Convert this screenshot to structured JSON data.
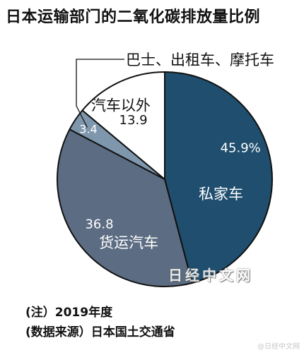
{
  "chart_data": {
    "type": "pie",
    "title": "日本运输部门的二氧化碳排放量比例",
    "slices": [
      {
        "label": "私家车",
        "value": 45.9,
        "value_label": "45.9%",
        "color": "#1f4e6e"
      },
      {
        "label": "货运汽车",
        "value": 36.8,
        "value_label": "36.8",
        "color": "#5c6c82"
      },
      {
        "label": "",
        "value": 3.4,
        "value_label": "3.4",
        "color": "#7f97ad"
      },
      {
        "label": "汽车以外",
        "value": 13.9,
        "value_label": "13.9",
        "color": "#ffffff"
      }
    ],
    "callout_label": "巴士、出租车、摩托车"
  },
  "notes": {
    "note1": "(注）2019年度",
    "note2": "(数据来源）日本国土交通省"
  },
  "watermark": "日经中文网",
  "corner_mark": "@日经中文网"
}
